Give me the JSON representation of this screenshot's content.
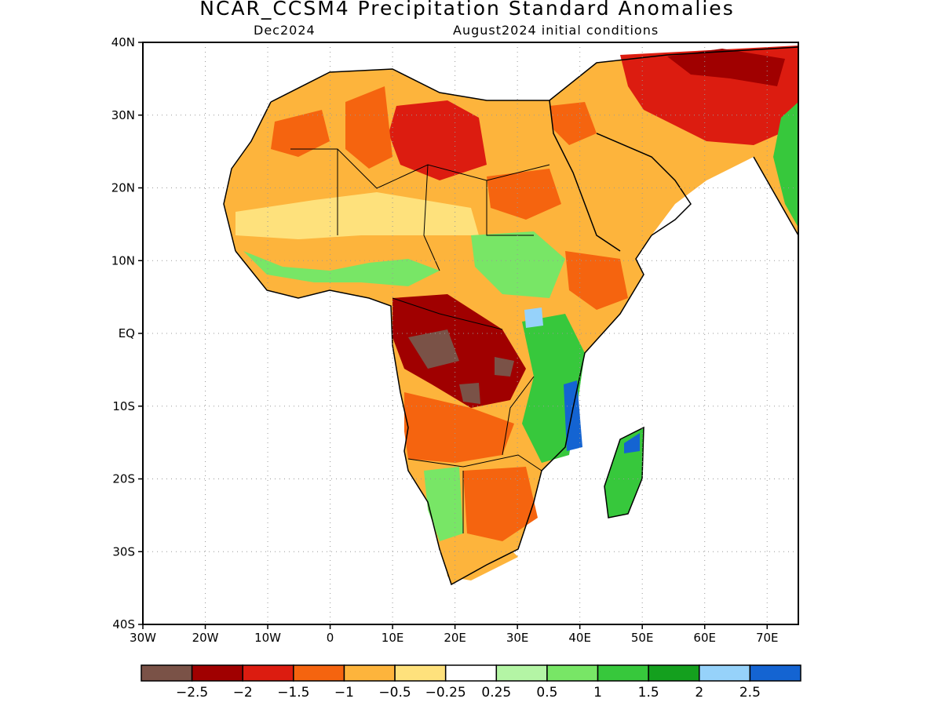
{
  "header": {
    "title": "NCAR_CCSM4 Precipitation Standard Anomalies",
    "valid_month": "Dec2024",
    "init": "August2024 initial conditions"
  },
  "axes": {
    "lat_labels": [
      "40N",
      "30N",
      "20N",
      "10N",
      "EQ",
      "10S",
      "20S",
      "30S",
      "40S"
    ],
    "lat_values": [
      40,
      30,
      20,
      10,
      0,
      -10,
      -20,
      -30,
      -40
    ],
    "lon_labels": [
      "30W",
      "20W",
      "10W",
      "0",
      "10E",
      "20E",
      "30E",
      "40E",
      "50E",
      "60E",
      "70E"
    ],
    "lon_values": [
      -30,
      -20,
      -10,
      0,
      10,
      20,
      30,
      40,
      50,
      60,
      70
    ],
    "lon_range": [
      -30,
      75
    ],
    "lat_range": [
      -40,
      40
    ],
    "grid": "dotted"
  },
  "colorbar": {
    "colors": [
      "#7a5247",
      "#a00000",
      "#dc1c10",
      "#f5640f",
      "#fdb43c",
      "#fee17c",
      "#ffffff",
      "#b4f5a5",
      "#78e666",
      "#37c83c",
      "#14a01e",
      "#96d2fa",
      "#1464d2"
    ],
    "labels": [
      "−2.5",
      "−2",
      "−1.5",
      "−1",
      "−0.5",
      "−0.25",
      "0.25",
      "0.5",
      "1",
      "1.5",
      "2",
      "2.5"
    ]
  },
  "regions": [
    {
      "name": "sahara-west",
      "color": "#fdb43c"
    },
    {
      "name": "sahara-libya",
      "color": "#dc1c10"
    },
    {
      "name": "arabia",
      "color": "#fdb43c"
    },
    {
      "name": "iran-band",
      "color": "#dc1c10"
    },
    {
      "name": "east-africa",
      "color": "#37c83c"
    },
    {
      "name": "congo",
      "color": "#a00000"
    },
    {
      "name": "congo-core",
      "color": "#7a5247"
    },
    {
      "name": "southern-africa",
      "color": "#f5640f"
    },
    {
      "name": "madagascar",
      "color": "#37c83c"
    },
    {
      "name": "mozambique-coast",
      "color": "#1464d2"
    }
  ]
}
